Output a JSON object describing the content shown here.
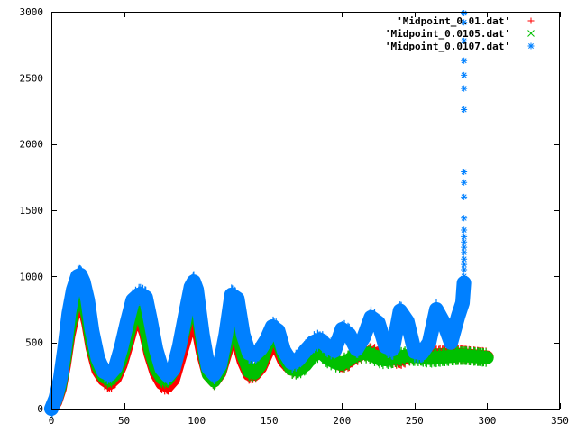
{
  "chart_data": {
    "type": "scatter",
    "title": "",
    "xlabel": "",
    "ylabel": "",
    "xlim": [
      0,
      350
    ],
    "ylim": [
      0,
      3000
    ],
    "xticks": [
      0,
      50,
      100,
      150,
      200,
      250,
      300,
      350
    ],
    "yticks": [
      0,
      500,
      1000,
      1500,
      2000,
      2500,
      3000
    ],
    "xtick_labels": [
      "0",
      "50",
      "100",
      "150",
      "200",
      "250",
      "300",
      "350"
    ],
    "ytick_labels": [
      "0",
      "500",
      "1000",
      "1500",
      "2000",
      "2500",
      "3000"
    ],
    "grid": false,
    "legend_position": "top-right",
    "series": [
      {
        "name": "'Midpoint_0.01.dat'",
        "color": "#ff0000",
        "marker": "plus",
        "band": 45,
        "x": [
          0,
          3,
          6,
          9,
          12,
          15,
          18,
          20,
          22,
          25,
          28,
          32,
          36,
          40,
          44,
          48,
          52,
          56,
          60,
          62,
          65,
          68,
          72,
          76,
          80,
          84,
          88,
          92,
          96,
          98,
          100,
          104,
          108,
          112,
          116,
          120,
          124,
          128,
          132,
          136,
          140,
          144,
          148,
          152,
          156,
          160,
          165,
          170,
          175,
          180,
          185,
          190,
          195,
          200,
          205,
          210,
          215,
          220,
          225,
          230,
          235,
          240,
          245,
          250,
          255,
          260,
          265,
          270,
          275,
          280,
          285,
          290,
          295,
          300
        ],
        "y": [
          0,
          50,
          150,
          330,
          550,
          700,
          800,
          820,
          780,
          650,
          460,
          290,
          220,
          190,
          230,
          330,
          480,
          640,
          700,
          660,
          560,
          410,
          270,
          190,
          170,
          220,
          370,
          520,
          670,
          700,
          650,
          420,
          260,
          210,
          270,
          420,
          560,
          520,
          360,
          260,
          260,
          310,
          410,
          500,
          460,
          360,
          300,
          300,
          340,
          400,
          450,
          420,
          360,
          330,
          360,
          400,
          420,
          420,
          410,
          400,
          380,
          370,
          390,
          410,
          410,
          400,
          405,
          410,
          410,
          410,
          405,
          400,
          395,
          390
        ]
      },
      {
        "name": "'Midpoint_0.0105.dat'",
        "color": "#00c000",
        "marker": "cross",
        "band": 45,
        "x": [
          0,
          3,
          6,
          9,
          12,
          15,
          18,
          20,
          22,
          25,
          28,
          32,
          36,
          40,
          44,
          48,
          52,
          56,
          60,
          62,
          65,
          68,
          72,
          76,
          80,
          84,
          88,
          92,
          96,
          98,
          100,
          104,
          108,
          112,
          116,
          120,
          124,
          128,
          132,
          136,
          140,
          144,
          148,
          152,
          156,
          160,
          165,
          170,
          175,
          180,
          185,
          190,
          195,
          200,
          205,
          210,
          215,
          220,
          225,
          230,
          235,
          240,
          245,
          250,
          255,
          260,
          265,
          270,
          275,
          280,
          285,
          290,
          295,
          300
        ],
        "y": [
          0,
          60,
          170,
          360,
          590,
          760,
          860,
          880,
          830,
          690,
          490,
          320,
          240,
          220,
          260,
          370,
          520,
          690,
          760,
          720,
          600,
          440,
          300,
          230,
          220,
          290,
          450,
          620,
          800,
          830,
          770,
          480,
          260,
          210,
          280,
          460,
          630,
          590,
          400,
          280,
          270,
          330,
          460,
          570,
          520,
          390,
          300,
          290,
          330,
          400,
          430,
          380,
          350,
          340,
          370,
          410,
          420,
          410,
          380,
          370,
          380,
          390,
          400,
          395,
          390,
          380,
          385,
          390,
          395,
          400,
          400,
          395,
          390,
          385
        ]
      },
      {
        "name": "'Midpoint_0.0107.dat'",
        "color": "#0080ff",
        "marker": "star",
        "band": 50,
        "x": [
          0,
          3,
          6,
          9,
          12,
          15,
          18,
          20,
          22,
          25,
          28,
          32,
          36,
          40,
          44,
          48,
          52,
          56,
          60,
          62,
          65,
          68,
          72,
          76,
          80,
          84,
          88,
          92,
          96,
          98,
          100,
          104,
          108,
          112,
          116,
          120,
          124,
          128,
          132,
          136,
          140,
          144,
          148,
          152,
          156,
          160,
          165,
          170,
          175,
          180,
          185,
          190,
          195,
          200,
          205,
          210,
          215,
          220,
          225,
          230,
          235,
          240,
          245,
          250,
          255,
          260,
          265,
          270,
          275,
          280,
          283,
          284
        ],
        "y": [
          0,
          80,
          220,
          450,
          720,
          900,
          1000,
          1010,
          960,
          820,
          590,
          380,
          280,
          260,
          310,
          460,
          650,
          820,
          860,
          860,
          840,
          680,
          450,
          300,
          250,
          300,
          470,
          700,
          920,
          960,
          900,
          560,
          310,
          260,
          330,
          560,
          860,
          830,
          560,
          420,
          410,
          450,
          520,
          620,
          590,
          440,
          350,
          370,
          440,
          500,
          520,
          470,
          440,
          600,
          560,
          450,
          540,
          690,
          650,
          470,
          450,
          740,
          660,
          430,
          420,
          500,
          750,
          650,
          500,
          700,
          800,
          950
        ]
      },
      {
        "name": "",
        "color": "#0080ff",
        "marker": "star",
        "band": 0,
        "x": [
          284,
          284,
          284,
          284,
          284,
          284,
          284,
          284,
          284,
          284,
          284,
          284,
          284,
          284,
          284,
          284,
          284,
          284,
          284,
          284
        ],
        "y": [
          1000,
          1050,
          1090,
          1130,
          1180,
          1220,
          1260,
          1300,
          1350,
          1440,
          1600,
          1710,
          1790,
          2260,
          2420,
          2520,
          2630,
          2780,
          2920,
          2990
        ]
      }
    ]
  }
}
